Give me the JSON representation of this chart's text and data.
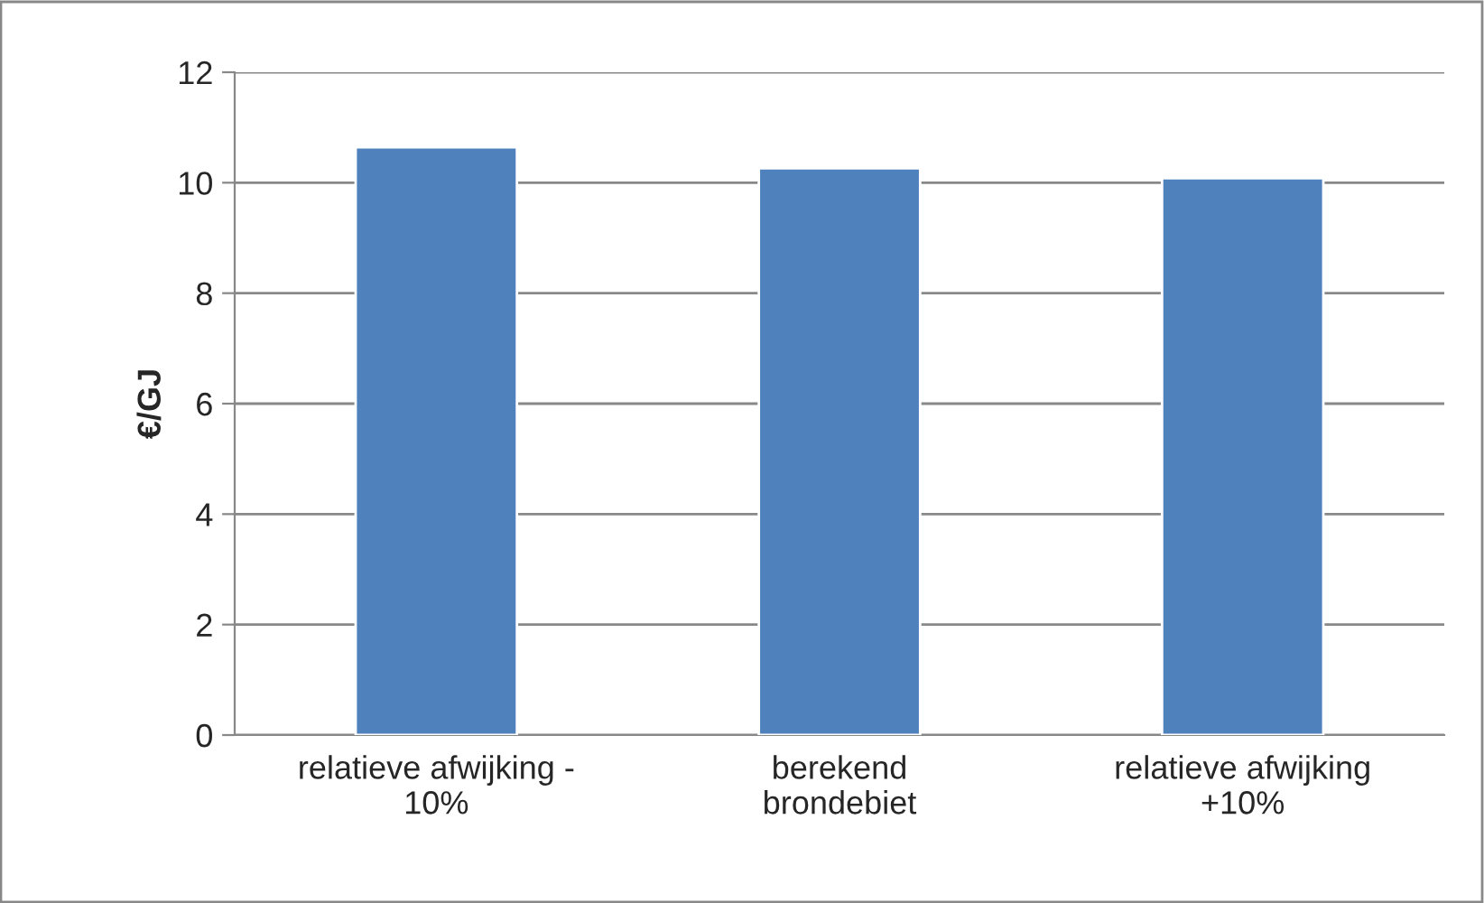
{
  "chart_data": {
    "type": "bar",
    "ylabel": "€/GJ",
    "categories": [
      "relatieve afwijking -\n10%",
      "berekend\nbrondebiet",
      "relatieve afwijking\n+10%"
    ],
    "values": [
      10.64,
      10.26,
      10.08
    ],
    "color": "#4f81bd",
    "ylim": [
      0,
      12
    ],
    "yticks": [
      0,
      2,
      4,
      6,
      8,
      10,
      12
    ],
    "grid": "y",
    "legend": false
  }
}
